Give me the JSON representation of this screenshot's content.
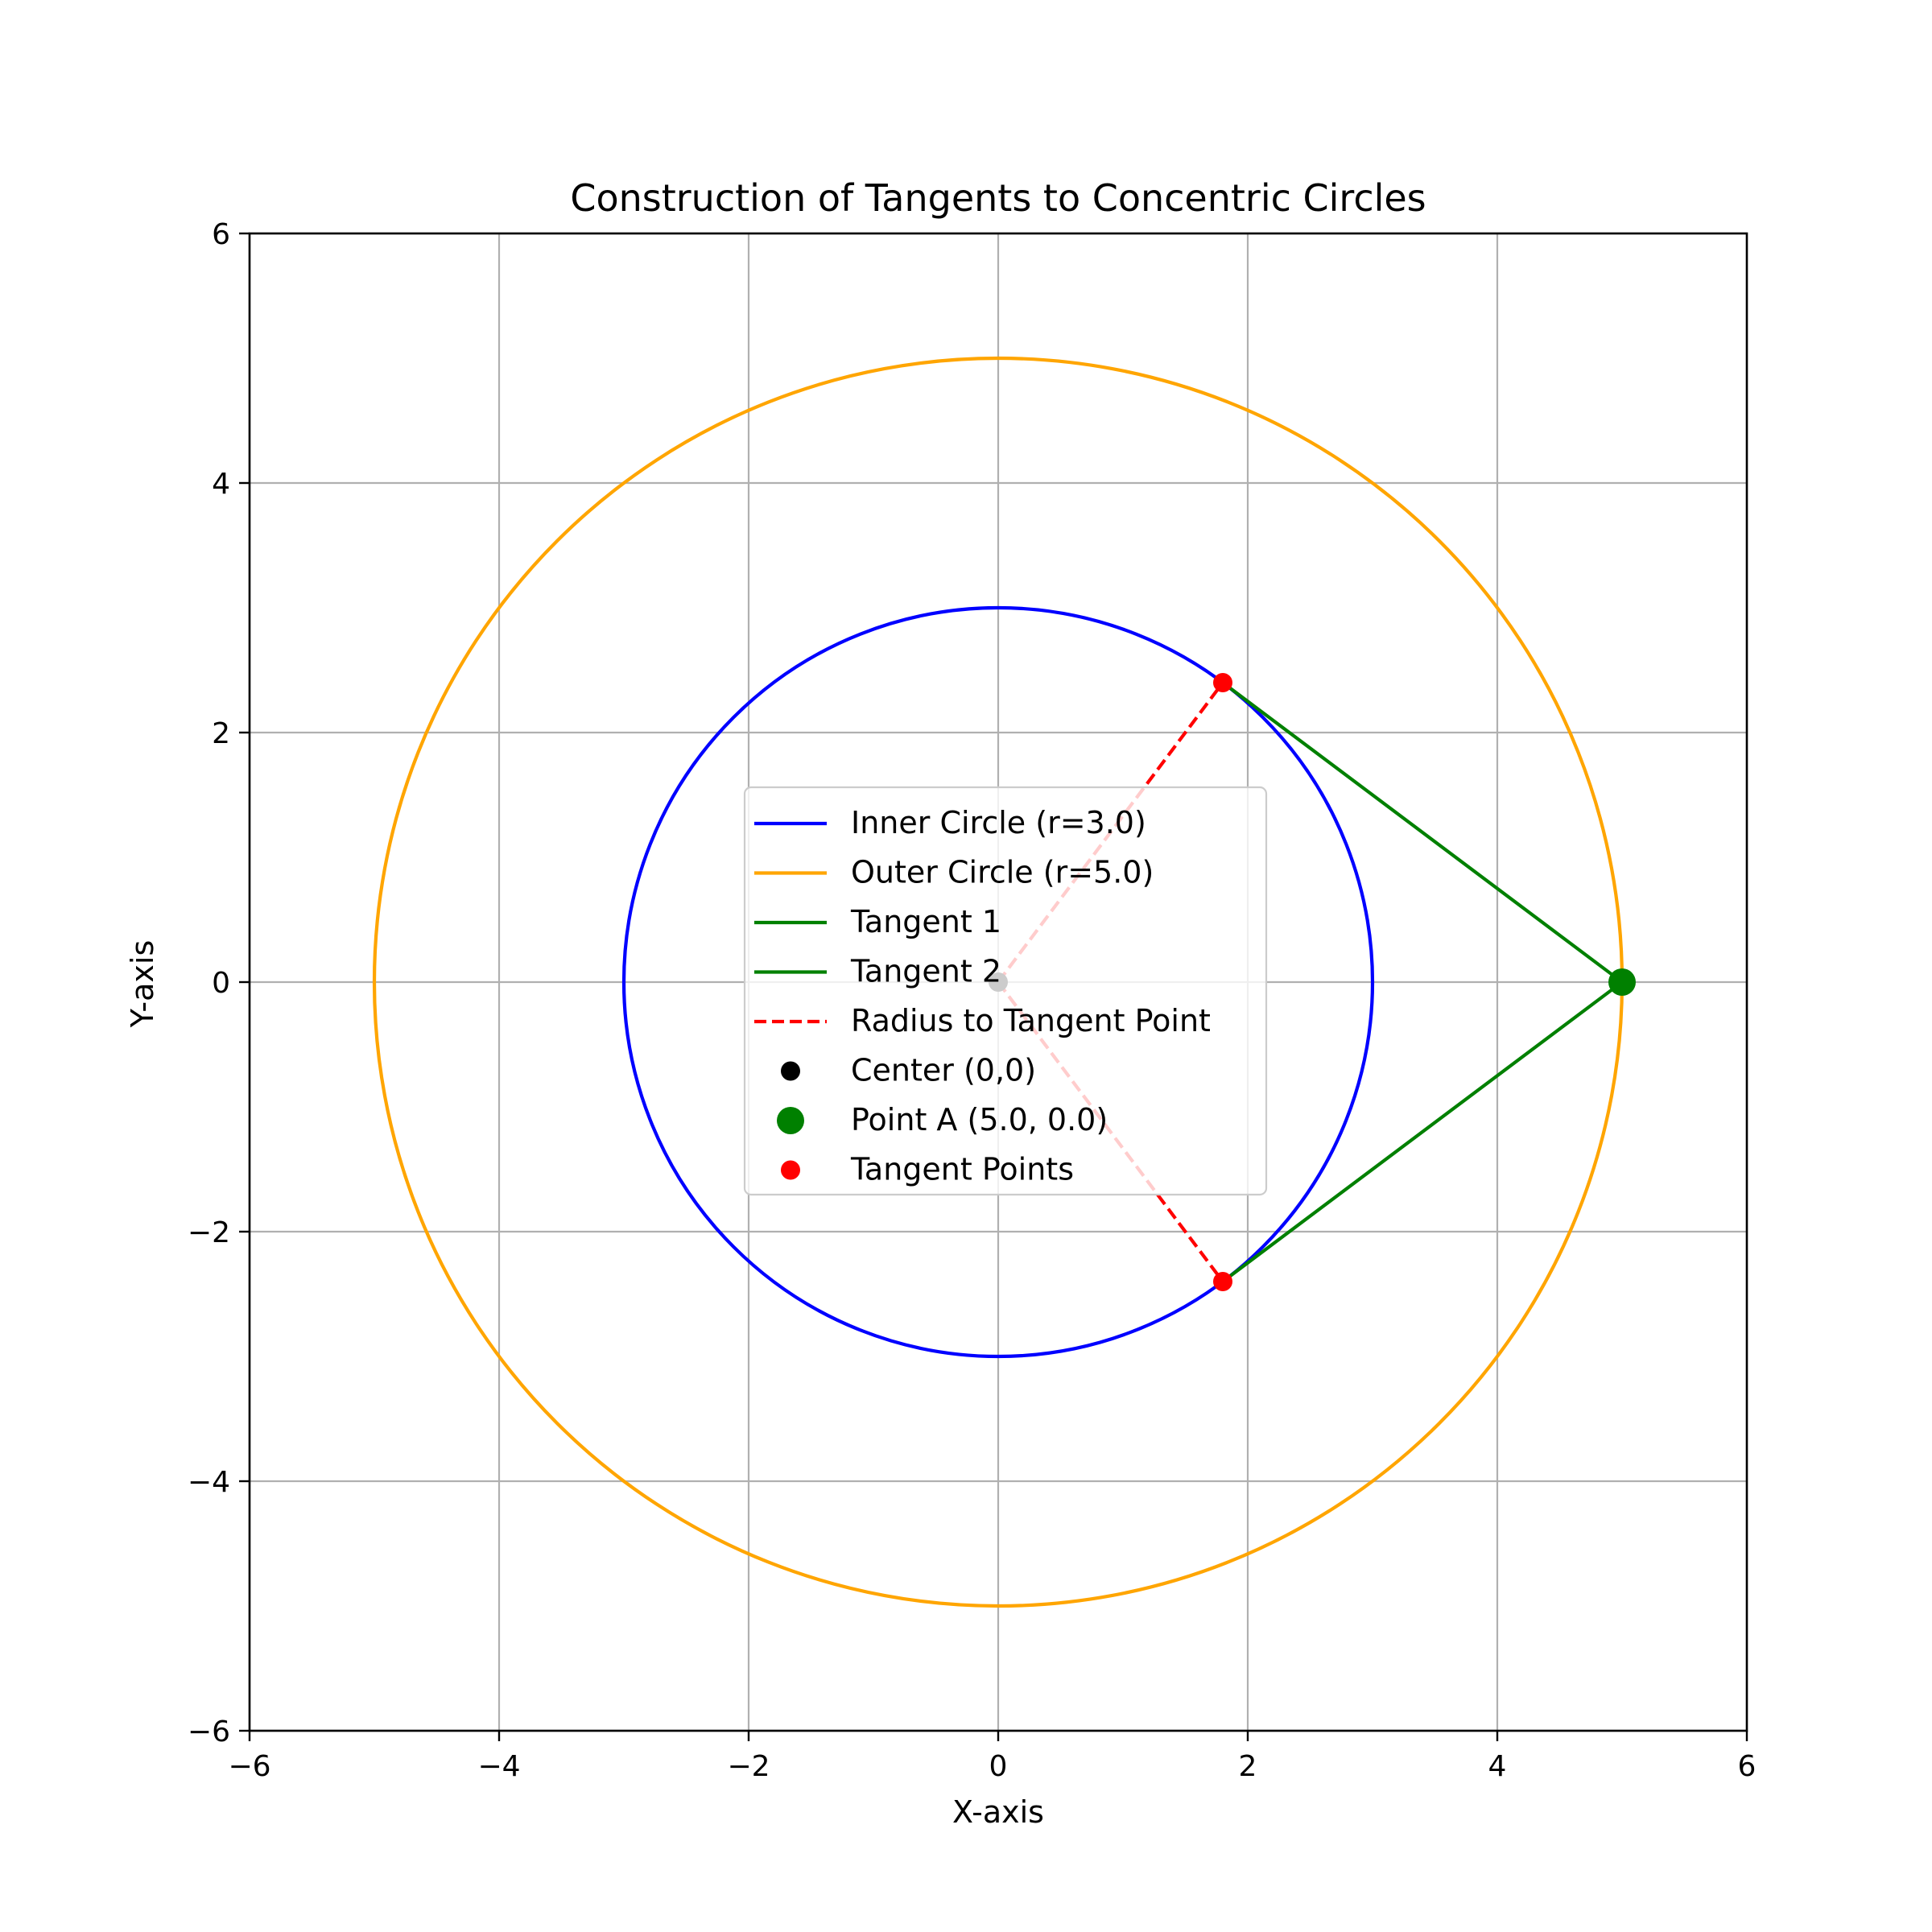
{
  "chart_data": {
    "type": "line",
    "title": "Construction of Tangents to Concentric Circles",
    "xlabel": "X-axis",
    "ylabel": "Y-axis",
    "xlim": [
      -6,
      6
    ],
    "ylim": [
      -6,
      6
    ],
    "xticks": [
      -6,
      -4,
      -2,
      0,
      2,
      4,
      6
    ],
    "yticks": [
      -6,
      -4,
      -2,
      0,
      2,
      4,
      6
    ],
    "tick_labels_x": [
      "−6",
      "−4",
      "−2",
      "0",
      "2",
      "4",
      "6"
    ],
    "tick_labels_y": [
      "−6",
      "−4",
      "−2",
      "0",
      "2",
      "4",
      "6"
    ],
    "grid": true,
    "legend_position": "center",
    "circles": [
      {
        "name": "Inner Circle (r=3.0)",
        "center": [
          0,
          0
        ],
        "r": 3.0,
        "color": "#0000ff"
      },
      {
        "name": "Outer Circle (r=5.0)",
        "center": [
          0,
          0
        ],
        "r": 5.0,
        "color": "#ffa500"
      }
    ],
    "tangents": [
      {
        "name": "Tangent 1",
        "points": [
          [
            5.0,
            0.0
          ],
          [
            1.8,
            2.4
          ]
        ],
        "color": "#008000"
      },
      {
        "name": "Tangent 2",
        "points": [
          [
            5.0,
            0.0
          ],
          [
            1.8,
            -2.4
          ]
        ],
        "color": "#008000"
      }
    ],
    "radii": {
      "name": "Radius to Tangent Point",
      "color": "#ff0000",
      "segments": [
        [
          [
            0,
            0
          ],
          [
            1.8,
            2.4
          ]
        ],
        [
          [
            0,
            0
          ],
          [
            1.8,
            -2.4
          ]
        ]
      ]
    },
    "center": {
      "name": "Center (0,0)",
      "point": [
        0,
        0
      ],
      "color": "#000000"
    },
    "point_a": {
      "name": "Point A (5.0, 0.0)",
      "point": [
        5.0,
        0.0
      ],
      "color": "#008000"
    },
    "tangent_points": {
      "name": "Tangent Points",
      "points": [
        [
          1.8,
          2.4
        ],
        [
          1.8,
          -2.4
        ]
      ],
      "color": "#ff0000"
    }
  }
}
